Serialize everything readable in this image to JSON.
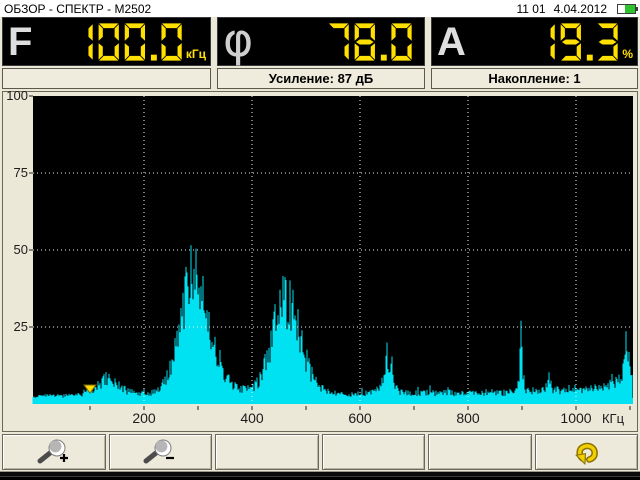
{
  "header": {
    "title": "ОБЗОР - СПЕКТР - М2502",
    "time": "11 01",
    "date": "4.04.2012",
    "battery_percent": 60
  },
  "readouts": [
    {
      "id": "frequency",
      "symbol": "F",
      "value": "100.0",
      "unit": "кГц"
    },
    {
      "id": "phase",
      "symbol": "φ",
      "value": "78.0",
      "unit": ""
    },
    {
      "id": "amplitude",
      "symbol": "A",
      "value": "19.3",
      "unit": "%"
    }
  ],
  "info_boxes": [
    {
      "label": ""
    },
    {
      "label": "Усиление: 87 дБ"
    },
    {
      "label": "Накопление: 1"
    }
  ],
  "chart_data": {
    "type": "area",
    "title": "",
    "xlabel": "КГц",
    "ylabel": "",
    "xlim": [
      0,
      1105
    ],
    "ylim": [
      0,
      100
    ],
    "x_ticks": [
      200,
      400,
      600,
      800,
      1000
    ],
    "x_minor_tick_step": 100,
    "y_ticks": [
      25,
      50,
      75,
      100
    ],
    "y_gridlines": [
      25,
      50,
      75
    ],
    "grid": "dotted-white",
    "legend": "none",
    "plot_bg": "#000000",
    "series_color": "#00e1f2",
    "baseline_band_height": 2,
    "marker": {
      "x": 100,
      "shape": "triangle-down",
      "color": "#ffdf00"
    },
    "peaks_summary": [
      {
        "center": 130,
        "height": 10,
        "width": 60,
        "kind": "broad"
      },
      {
        "center": 292,
        "height": 53,
        "width": 70,
        "kind": "broad"
      },
      {
        "center": 463,
        "height": 40,
        "width": 80,
        "kind": "broad"
      },
      {
        "center": 650,
        "height": 21,
        "width": 12,
        "kind": "narrow"
      },
      {
        "center": 898,
        "height": 28,
        "width": 6,
        "kind": "narrow"
      },
      {
        "center": 1093,
        "height": 28,
        "width": 8,
        "kind": "narrow"
      }
    ],
    "envelope": [
      [
        0,
        3
      ],
      [
        30,
        3
      ],
      [
        60,
        3
      ],
      [
        80,
        3.5
      ],
      [
        90,
        4
      ],
      [
        100,
        4.5
      ],
      [
        110,
        6
      ],
      [
        120,
        8
      ],
      [
        130,
        10
      ],
      [
        140,
        9
      ],
      [
        150,
        7.5
      ],
      [
        160,
        6
      ],
      [
        170,
        5
      ],
      [
        180,
        4.5
      ],
      [
        195,
        4
      ],
      [
        210,
        4
      ],
      [
        220,
        4.5
      ],
      [
        230,
        6
      ],
      [
        240,
        9
      ],
      [
        250,
        14
      ],
      [
        260,
        22
      ],
      [
        270,
        33
      ],
      [
        278,
        44
      ],
      [
        285,
        50
      ],
      [
        292,
        53
      ],
      [
        298,
        50
      ],
      [
        305,
        44
      ],
      [
        312,
        37
      ],
      [
        320,
        29
      ],
      [
        330,
        21
      ],
      [
        340,
        15
      ],
      [
        350,
        11
      ],
      [
        360,
        8
      ],
      [
        370,
        6.5
      ],
      [
        380,
        5.5
      ],
      [
        390,
        5.5
      ],
      [
        400,
        6
      ],
      [
        410,
        8
      ],
      [
        420,
        12
      ],
      [
        430,
        19
      ],
      [
        440,
        28
      ],
      [
        450,
        35
      ],
      [
        458,
        39
      ],
      [
        465,
        40
      ],
      [
        472,
        37
      ],
      [
        480,
        32
      ],
      [
        488,
        26
      ],
      [
        496,
        20
      ],
      [
        505,
        14
      ],
      [
        515,
        9
      ],
      [
        525,
        6.5
      ],
      [
        535,
        5
      ],
      [
        550,
        4.5
      ],
      [
        565,
        4
      ],
      [
        580,
        4
      ],
      [
        600,
        4
      ],
      [
        615,
        4.5
      ],
      [
        628,
        5
      ],
      [
        638,
        6
      ],
      [
        645,
        12
      ],
      [
        649,
        21
      ],
      [
        652,
        15
      ],
      [
        656,
        9
      ],
      [
        660,
        13
      ],
      [
        664,
        7
      ],
      [
        672,
        5
      ],
      [
        685,
        4.5
      ],
      [
        700,
        4
      ],
      [
        720,
        4.5
      ],
      [
        740,
        4
      ],
      [
        760,
        4.5
      ],
      [
        780,
        4
      ],
      [
        800,
        4.5
      ],
      [
        820,
        4
      ],
      [
        840,
        4.5
      ],
      [
        860,
        4
      ],
      [
        875,
        4.5
      ],
      [
        888,
        5
      ],
      [
        894,
        8
      ],
      [
        898,
        28
      ],
      [
        902,
        12
      ],
      [
        906,
        6
      ],
      [
        915,
        5
      ],
      [
        930,
        5
      ],
      [
        944,
        6
      ],
      [
        950,
        10
      ],
      [
        955,
        6
      ],
      [
        968,
        5
      ],
      [
        980,
        5
      ],
      [
        995,
        5
      ],
      [
        1010,
        5.5
      ],
      [
        1025,
        6
      ],
      [
        1040,
        6
      ],
      [
        1055,
        7
      ],
      [
        1070,
        7.5
      ],
      [
        1082,
        9
      ],
      [
        1088,
        14
      ],
      [
        1093,
        28
      ],
      [
        1097,
        17
      ],
      [
        1101,
        12
      ],
      [
        1105,
        9
      ]
    ]
  },
  "toolbar": {
    "buttons": [
      {
        "name": "zoom-in",
        "icon": "magnifier-plus-icon",
        "label": ""
      },
      {
        "name": "zoom-out",
        "icon": "magnifier-minus-icon",
        "label": ""
      },
      {
        "name": "softkey-3",
        "icon": "",
        "label": ""
      },
      {
        "name": "softkey-4",
        "icon": "",
        "label": ""
      },
      {
        "name": "softkey-5",
        "icon": "",
        "label": ""
      },
      {
        "name": "undo",
        "icon": "undo-arrow-icon",
        "label": ""
      }
    ]
  },
  "colors": {
    "background": "#ece8d8",
    "titlebar_bg": "#ffffff",
    "panel_bg": "#000000",
    "digit_yellow": "#ffe000",
    "spectrum_cyan": "#00e1f2",
    "marker_yellow": "#ffdf00",
    "battery_green": "#2fc22f"
  }
}
